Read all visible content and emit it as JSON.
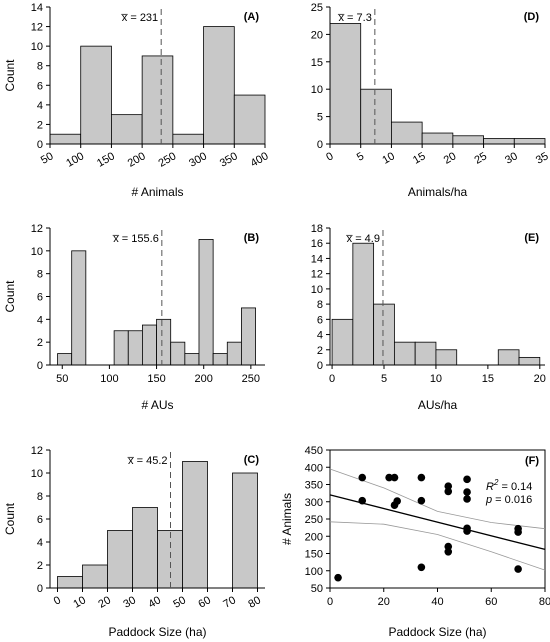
{
  "chart_data": [
    {
      "id": "A",
      "type": "bar",
      "panel_label": "(A)",
      "xlabel": "# Animals",
      "ylabel": "Count",
      "xlim": [
        50,
        400
      ],
      "ylim": [
        0,
        14
      ],
      "xticks": [
        50,
        100,
        150,
        200,
        250,
        300,
        350,
        400
      ],
      "yticks": [
        0,
        2,
        4,
        6,
        8,
        10,
        12,
        14
      ],
      "bins": [
        {
          "start": 50,
          "end": 100,
          "count": 1
        },
        {
          "start": 100,
          "end": 150,
          "count": 10
        },
        {
          "start": 150,
          "end": 200,
          "count": 3
        },
        {
          "start": 200,
          "end": 250,
          "count": 9
        },
        {
          "start": 250,
          "end": 300,
          "count": 1
        },
        {
          "start": 300,
          "end": 350,
          "count": 12
        },
        {
          "start": 350,
          "end": 400,
          "count": 5
        }
      ],
      "mean": 231,
      "mean_label": "x̅ = 231"
    },
    {
      "id": "D",
      "type": "bar",
      "panel_label": "(D)",
      "xlabel": "Animals/ha",
      "ylabel": "",
      "xlim": [
        0,
        35
      ],
      "ylim": [
        0,
        25
      ],
      "xticks": [
        0,
        5,
        10,
        15,
        20,
        25,
        30,
        35
      ],
      "yticks": [
        0,
        5,
        10,
        15,
        20,
        25
      ],
      "bins": [
        {
          "start": 0,
          "end": 5,
          "count": 22
        },
        {
          "start": 5,
          "end": 10,
          "count": 10
        },
        {
          "start": 10,
          "end": 15,
          "count": 4
        },
        {
          "start": 15,
          "end": 20,
          "count": 2
        },
        {
          "start": 20,
          "end": 25,
          "count": 1.5
        },
        {
          "start": 25,
          "end": 30,
          "count": 1
        },
        {
          "start": 30,
          "end": 35,
          "count": 1
        }
      ],
      "mean": 7.3,
      "mean_label": "x̅ = 7.3"
    },
    {
      "id": "B",
      "type": "bar",
      "panel_label": "(B)",
      "xlabel": "# AUs",
      "ylabel": "Count",
      "xlim": [
        37,
        265
      ],
      "ylim": [
        0,
        12
      ],
      "xticks": [
        50,
        100,
        150,
        200,
        250
      ],
      "yticks": [
        0,
        2,
        4,
        6,
        8,
        10,
        12
      ],
      "bins": [
        {
          "start": 45,
          "end": 60,
          "count": 1
        },
        {
          "start": 60,
          "end": 75,
          "count": 10
        },
        {
          "start": 105,
          "end": 120,
          "count": 3
        },
        {
          "start": 120,
          "end": 135,
          "count": 3
        },
        {
          "start": 135,
          "end": 150,
          "count": 3.5
        },
        {
          "start": 150,
          "end": 165,
          "count": 4
        },
        {
          "start": 165,
          "end": 180,
          "count": 2
        },
        {
          "start": 180,
          "end": 195,
          "count": 1
        },
        {
          "start": 195,
          "end": 210,
          "count": 11
        },
        {
          "start": 210,
          "end": 225,
          "count": 1
        },
        {
          "start": 225,
          "end": 240,
          "count": 2
        },
        {
          "start": 240,
          "end": 255,
          "count": 5
        }
      ],
      "mean": 155.6,
      "mean_label": "x̅ = 155.6"
    },
    {
      "id": "E",
      "type": "bar",
      "panel_label": "(E)",
      "xlabel": "AUs/ha",
      "ylabel": "",
      "xlim": [
        -0.2,
        20.5
      ],
      "ylim": [
        0,
        18
      ],
      "xticks": [
        0,
        5,
        10,
        15,
        20
      ],
      "yticks": [
        0,
        2,
        4,
        6,
        8,
        10,
        12,
        14,
        16,
        18
      ],
      "bins": [
        {
          "start": 0,
          "end": 2,
          "count": 6
        },
        {
          "start": 2,
          "end": 4,
          "count": 16
        },
        {
          "start": 4,
          "end": 6,
          "count": 8
        },
        {
          "start": 6,
          "end": 8,
          "count": 3
        },
        {
          "start": 8,
          "end": 10,
          "count": 3
        },
        {
          "start": 10,
          "end": 12,
          "count": 2
        },
        {
          "start": 16,
          "end": 18,
          "count": 2
        },
        {
          "start": 18,
          "end": 20,
          "count": 1
        }
      ],
      "mean": 4.9,
      "mean_label": "x̅ = 4.9"
    },
    {
      "id": "C",
      "type": "bar",
      "panel_label": "(C)",
      "xlabel": "Paddock Size (ha)",
      "ylabel": "Count",
      "xlim": [
        -3,
        83
      ],
      "ylim": [
        0,
        12
      ],
      "xticks": [
        0,
        10,
        20,
        30,
        40,
        50,
        60,
        70,
        80
      ],
      "yticks": [
        0,
        2,
        4,
        6,
        8,
        10,
        12
      ],
      "bins": [
        {
          "start": 0,
          "end": 10,
          "count": 1
        },
        {
          "start": 10,
          "end": 20,
          "count": 2
        },
        {
          "start": 20,
          "end": 30,
          "count": 5
        },
        {
          "start": 30,
          "end": 40,
          "count": 7
        },
        {
          "start": 40,
          "end": 50,
          "count": 5
        },
        {
          "start": 50,
          "end": 60,
          "count": 11
        },
        {
          "start": 70,
          "end": 80,
          "count": 10
        }
      ],
      "mean": 45.2,
      "mean_label": "x̅ = 45.2"
    },
    {
      "id": "F",
      "type": "scatter",
      "panel_label": "(F)",
      "xlabel": "Paddock Size (ha)",
      "ylabel": "# Animals",
      "xlim": [
        0,
        80
      ],
      "ylim": [
        50,
        450
      ],
      "xticks": [
        0,
        20,
        40,
        60,
        80
      ],
      "yticks": [
        50,
        100,
        150,
        200,
        250,
        300,
        350,
        400,
        450
      ],
      "points": [
        {
          "x": 3,
          "y": 80
        },
        {
          "x": 12,
          "y": 370
        },
        {
          "x": 12,
          "y": 303
        },
        {
          "x": 22,
          "y": 370
        },
        {
          "x": 24,
          "y": 370
        },
        {
          "x": 24,
          "y": 290
        },
        {
          "x": 25,
          "y": 302
        },
        {
          "x": 34,
          "y": 370
        },
        {
          "x": 34,
          "y": 303
        },
        {
          "x": 34,
          "y": 110
        },
        {
          "x": 44,
          "y": 345
        },
        {
          "x": 44,
          "y": 330
        },
        {
          "x": 44,
          "y": 170
        },
        {
          "x": 44,
          "y": 155
        },
        {
          "x": 51,
          "y": 365
        },
        {
          "x": 51,
          "y": 328
        },
        {
          "x": 51,
          "y": 308
        },
        {
          "x": 51,
          "y": 223
        },
        {
          "x": 51,
          "y": 215
        },
        {
          "x": 70,
          "y": 222
        },
        {
          "x": 70,
          "y": 212
        },
        {
          "x": 70,
          "y": 105
        }
      ],
      "fit_line": [
        {
          "x": 0,
          "y": 320
        },
        {
          "x": 80,
          "y": 162
        }
      ],
      "ci_upper": [
        {
          "x": 0,
          "y": 395
        },
        {
          "x": 20,
          "y": 340
        },
        {
          "x": 40,
          "y": 272
        },
        {
          "x": 60,
          "y": 240
        },
        {
          "x": 80,
          "y": 222
        }
      ],
      "ci_lower": [
        {
          "x": 0,
          "y": 242
        },
        {
          "x": 20,
          "y": 235
        },
        {
          "x": 40,
          "y": 205
        },
        {
          "x": 60,
          "y": 155
        },
        {
          "x": 80,
          "y": 102
        }
      ],
      "stats": {
        "r2_label": "R",
        "r2_sup": "2",
        "r2_value": " = 0.14",
        "p_label": "p",
        "p_value": " = 0.016"
      }
    }
  ]
}
